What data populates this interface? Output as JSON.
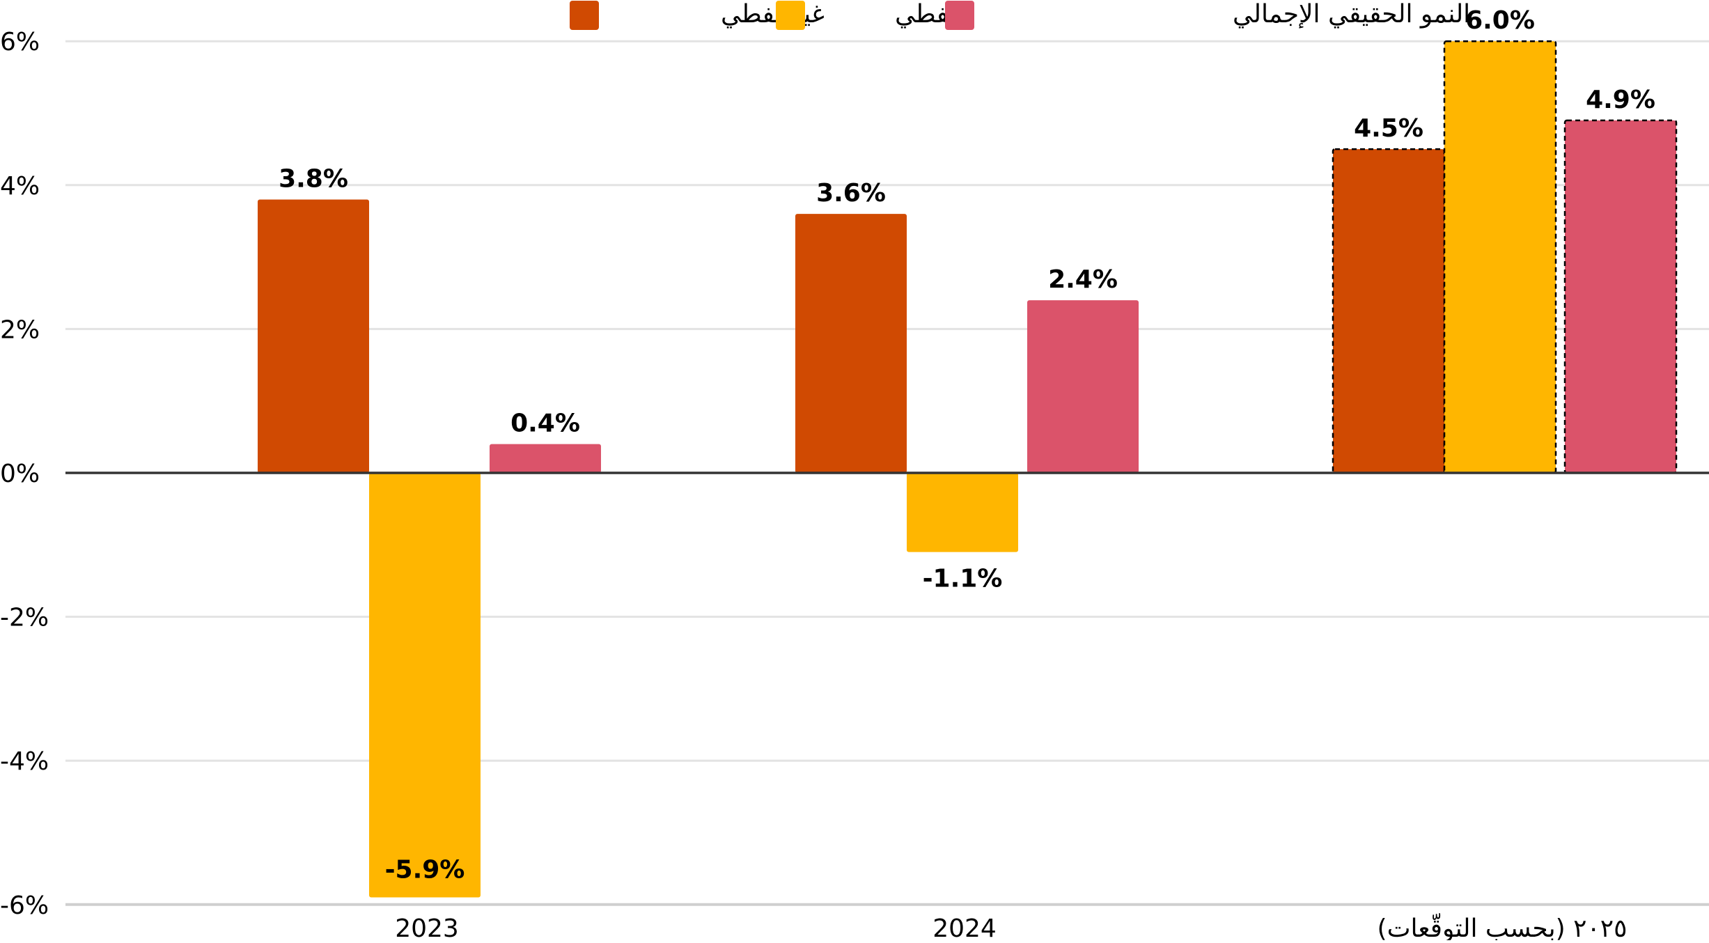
{
  "chart_data": {
    "type": "bar",
    "categories": [
      "2023",
      "2024",
      "٢٠٢٥ (بحسب التوقّعات)"
    ],
    "series": [
      {
        "name": "غير نفطي",
        "color": "#D04A02",
        "values": [
          3.8,
          3.6,
          4.5
        ],
        "labels": [
          "3.8%",
          "3.6%",
          "4.5%"
        ]
      },
      {
        "name": "نفطي",
        "color": "#FFB600",
        "values": [
          -5.9,
          -1.1,
          6.0
        ],
        "labels": [
          "-5.9%",
          "-1.1%",
          "6.0%"
        ]
      },
      {
        "name": "النمو الحقيقي الإجمالي",
        "color": "#DB536A",
        "values": [
          0.4,
          2.4,
          4.9
        ],
        "labels": [
          "0.4%",
          "2.4%",
          "4.9%"
        ]
      }
    ],
    "forecast_categories": [
      2
    ],
    "yticks": [
      6,
      4,
      2,
      0,
      -2,
      -4,
      -6
    ],
    "ytick_labels": [
      "6%",
      "4%",
      "2%",
      "0%",
      "-2%",
      "-4%",
      "-6%"
    ],
    "ylim": [
      -6,
      6
    ],
    "grid": true,
    "legend_position": "top-center"
  }
}
